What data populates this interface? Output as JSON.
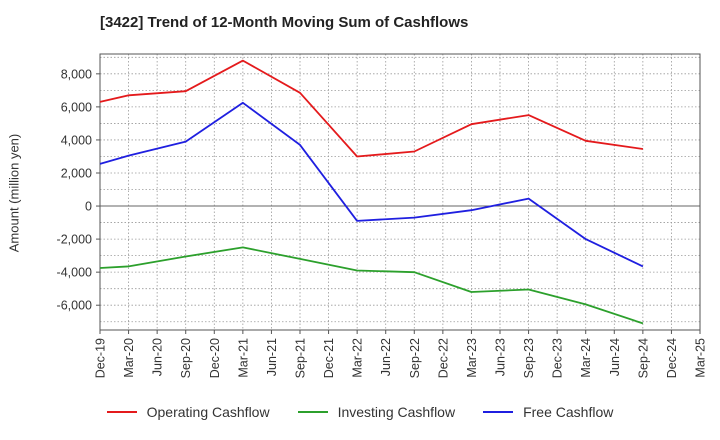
{
  "chart_data": {
    "type": "line",
    "title": "[3422]  Trend of 12-Month Moving Sum of Cashflows",
    "ylabel": "Amount (million yen)",
    "xlabel": "",
    "categories": [
      "Dec-19",
      "Mar-20",
      "Jun-20",
      "Sep-20",
      "Dec-20",
      "Mar-21",
      "Jun-21",
      "Sep-21",
      "Dec-21",
      "Mar-22",
      "Jun-22",
      "Sep-22",
      "Dec-22",
      "Mar-23",
      "Jun-23",
      "Sep-23",
      "Dec-23",
      "Mar-24",
      "Jun-24",
      "Sep-24",
      "Dec-24",
      "Mar-25"
    ],
    "ylim": [
      -7500,
      9200
    ],
    "yticks": [
      {
        "value": 8000,
        "label": "8,000"
      },
      {
        "value": 6000,
        "label": "6,000"
      },
      {
        "value": 4000,
        "label": "4,000"
      },
      {
        "value": 2000,
        "label": "2,000"
      },
      {
        "value": 0,
        "label": "0"
      },
      {
        "value": -2000,
        "label": "-2,000"
      },
      {
        "value": -4000,
        "label": "-4,000"
      },
      {
        "value": -6000,
        "label": "-6,000"
      }
    ],
    "grid": true,
    "legend_position": "bottom",
    "series": [
      {
        "name": "Operating Cashflow",
        "color": "#e41a1c",
        "x": [
          "Dec-19",
          "Mar-20",
          "Sep-20",
          "Mar-21",
          "Sep-21",
          "Mar-22",
          "Sep-22",
          "Mar-23",
          "Sep-23",
          "Mar-24",
          "Sep-24"
        ],
        "values": [
          6300,
          6700,
          6950,
          8800,
          6850,
          3000,
          3300,
          4950,
          5500,
          3950,
          3450
        ]
      },
      {
        "name": "Investing Cashflow",
        "color": "#2ca02c",
        "x": [
          "Dec-19",
          "Mar-20",
          "Sep-20",
          "Mar-21",
          "Sep-21",
          "Mar-22",
          "Sep-22",
          "Mar-23",
          "Sep-23",
          "Mar-24",
          "Sep-24"
        ],
        "values": [
          -3750,
          -3650,
          -3050,
          -2500,
          -3200,
          -3900,
          -4000,
          -5200,
          -5050,
          -5950,
          -7100
        ]
      },
      {
        "name": "Free Cashflow",
        "color": "#1f1fe0",
        "x": [
          "Dec-19",
          "Mar-20",
          "Sep-20",
          "Mar-21",
          "Sep-21",
          "Mar-22",
          "Sep-22",
          "Mar-23",
          "Sep-23",
          "Mar-24",
          "Sep-24"
        ],
        "values": [
          2550,
          3050,
          3900,
          6250,
          3700,
          -900,
          -700,
          -250,
          450,
          -2000,
          -3650
        ]
      }
    ]
  }
}
